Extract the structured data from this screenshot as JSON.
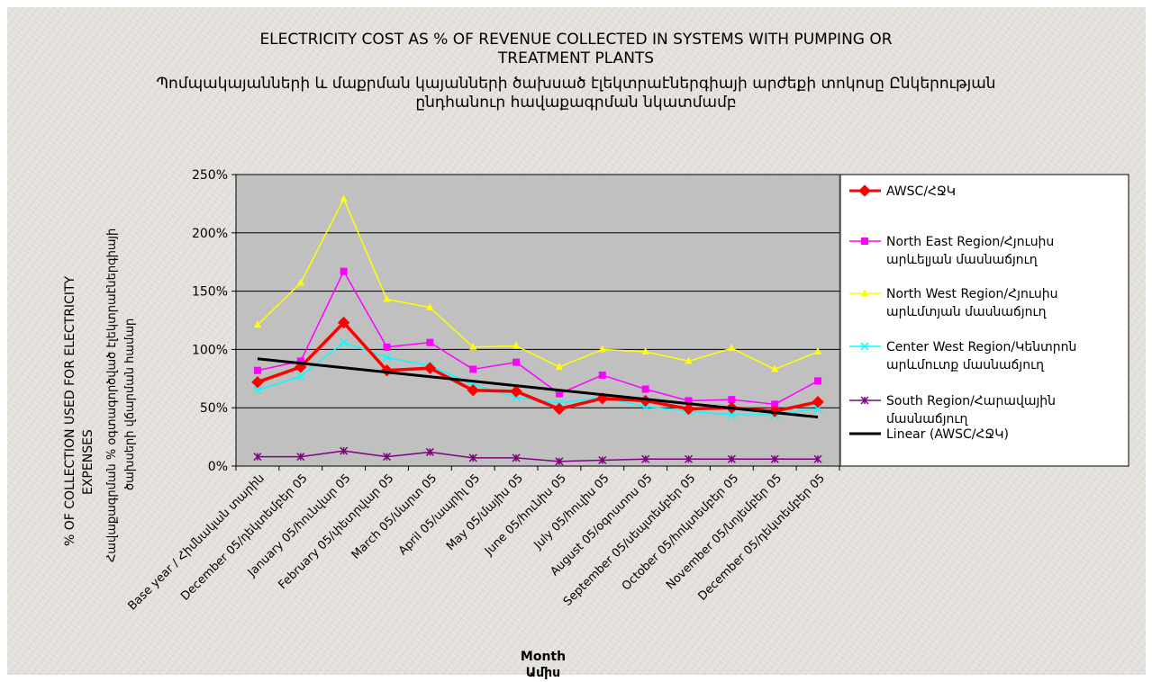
{
  "chart_data": {
    "type": "line",
    "title": "ELECTRICITY COST AS % OF REVENUE COLLECTED IN SYSTEMS WITH PUMPING OR TREATMENT PLANTS",
    "title_lines": [
      "ELECTRICITY COST AS % OF REVENUE COLLECTED IN SYSTEMS WITH PUMPING OR",
      "TREATMENT PLANTS",
      "Պոմպակայանների և մաքրման կայանների ծախսած էլեկտրաէներգիայի արժեքի տոկոսը Ընկերության",
      "ընդհանուր հավաքագրման նկատմամբ"
    ],
    "xlabel_lines": [
      "Month",
      "Ամիս"
    ],
    "ylabel_lines": [
      "% OF COLLECTION USED FOR ELECTRICITY",
      "EXPENSES",
      "Հավաքագրման % օգտագործված էլեկտրաէներգիայի",
      "ծախսերի վճարման համար"
    ],
    "ylim": [
      0,
      250
    ],
    "y_unit": "%",
    "yticks": [
      "0%",
      "50%",
      "100%",
      "150%",
      "200%",
      "250%"
    ],
    "grid": true,
    "plot_background": "#c0c0c0",
    "legend_position": "right",
    "categories": [
      "Base year / Հիմնական տարին",
      "December 05/դեկտեմբեր 05",
      "January 05/հունվար 05",
      "February 05/փետրվար 05",
      "March 05/մարտ 05",
      "April 05/ապրիլ 05",
      "May 05/մայիս 05",
      "June 05/հունիս 05",
      "July 05/հուլիս 05",
      "August 05/օգոստոս 05",
      "September 05/սեպտեմբեր 05",
      "October 05/հոկտեմբեր 05",
      "November 05/նոյեմբեր 05",
      "December 05/դեկտեմբեր 05"
    ],
    "series": [
      {
        "name": "AWSC/ՀՋԿ",
        "legend_lines": [
          "AWSC/ՀՋԿ"
        ],
        "color": "#ff0000",
        "marker": "diamond",
        "width": 3.5,
        "values": [
          72,
          85,
          123,
          82,
          84,
          65,
          64,
          49,
          58,
          56,
          49,
          50,
          47,
          55
        ]
      },
      {
        "name": "North East Region/Հյուսիս արևելյան մասնաճյուղ",
        "legend_lines": [
          "North East Region/Հյուսիս",
          "արևելյան մասնաճյուղ"
        ],
        "color": "#ff00ff",
        "marker": "square",
        "width": 1.5,
        "values": [
          82,
          90,
          167,
          102,
          106,
          83,
          89,
          62,
          78,
          66,
          56,
          57,
          53,
          73
        ]
      },
      {
        "name": "North West Region/Հյուսիս արևմտյան մասնաճյուղ",
        "legend_lines": [
          "North West Region/Հյուսիս",
          "արևմտյան մասնաճյուղ"
        ],
        "color": "#ffff00",
        "marker": "triangle",
        "width": 1.5,
        "values": [
          121,
          157,
          229,
          143,
          136,
          102,
          103,
          85,
          100,
          98,
          90,
          101,
          83,
          98
        ]
      },
      {
        "name": "Center West Region/Կենտրոն արևմուտք մասնաճյուղ",
        "legend_lines": [
          "Center West Region/Կենտրոն",
          "արևմուտք մասնաճյուղ"
        ],
        "color": "#00ffff",
        "marker": "x",
        "width": 1.5,
        "values": [
          65,
          77,
          106,
          93,
          86,
          70,
          59,
          54,
          59,
          51,
          47,
          44,
          44,
          49
        ]
      },
      {
        "name": "South Region/Հարավային մասնաճյուղ",
        "legend_lines": [
          "South Region/Հարավային",
          "մասնաճյուղ"
        ],
        "color": "#800080",
        "marker": "star",
        "width": 1.5,
        "values": [
          8,
          8,
          13,
          8,
          12,
          7,
          7,
          4,
          5,
          6,
          6,
          6,
          6,
          6
        ]
      }
    ],
    "trendline": {
      "name": "Linear (AWSC/ՀՋԿ)",
      "legend_lines": [
        "Linear (AWSC/ՀՋԿ)"
      ],
      "color": "#000000",
      "start": 92,
      "end": 42
    }
  }
}
